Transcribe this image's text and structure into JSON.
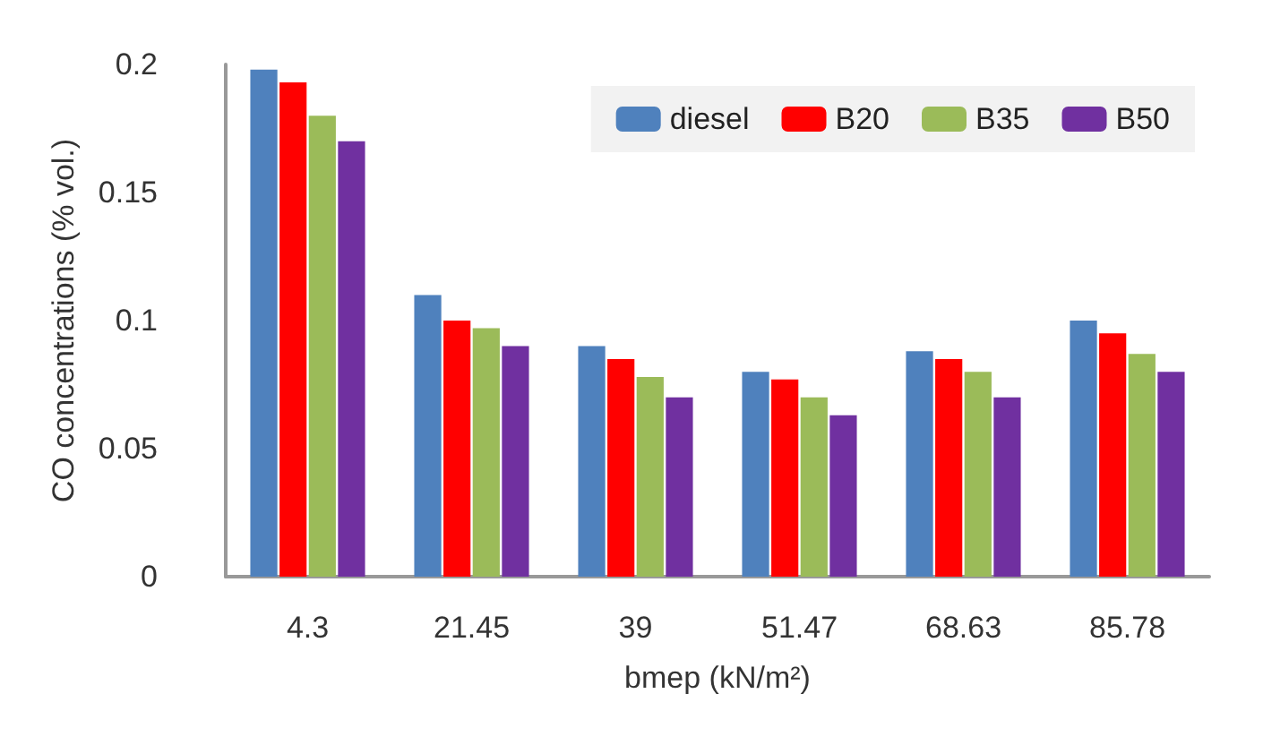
{
  "chart_data": {
    "type": "bar",
    "xlabel": "bmep (kN/m²)",
    "ylabel": "CO concentrations (% vol.)",
    "categories": [
      "4.3",
      "21.45",
      "39",
      "51.47",
      "68.63",
      "85.78"
    ],
    "series": [
      {
        "name": "diesel",
        "color": "#4f81bd",
        "values": [
          0.198,
          0.11,
          0.09,
          0.08,
          0.088,
          0.1
        ]
      },
      {
        "name": "B20",
        "color": "#ff0000",
        "values": [
          0.193,
          0.1,
          0.085,
          0.077,
          0.085,
          0.095
        ]
      },
      {
        "name": "B35",
        "color": "#9bbb59",
        "values": [
          0.18,
          0.097,
          0.078,
          0.07,
          0.08,
          0.087
        ]
      },
      {
        "name": "B50",
        "color": "#7030a0",
        "values": [
          0.17,
          0.09,
          0.07,
          0.063,
          0.07,
          0.08
        ]
      }
    ],
    "ylim": [
      0,
      0.2
    ],
    "yticks": [
      0,
      0.05,
      0.1,
      0.15,
      0.2
    ],
    "grid": false,
    "legend": "top right"
  }
}
